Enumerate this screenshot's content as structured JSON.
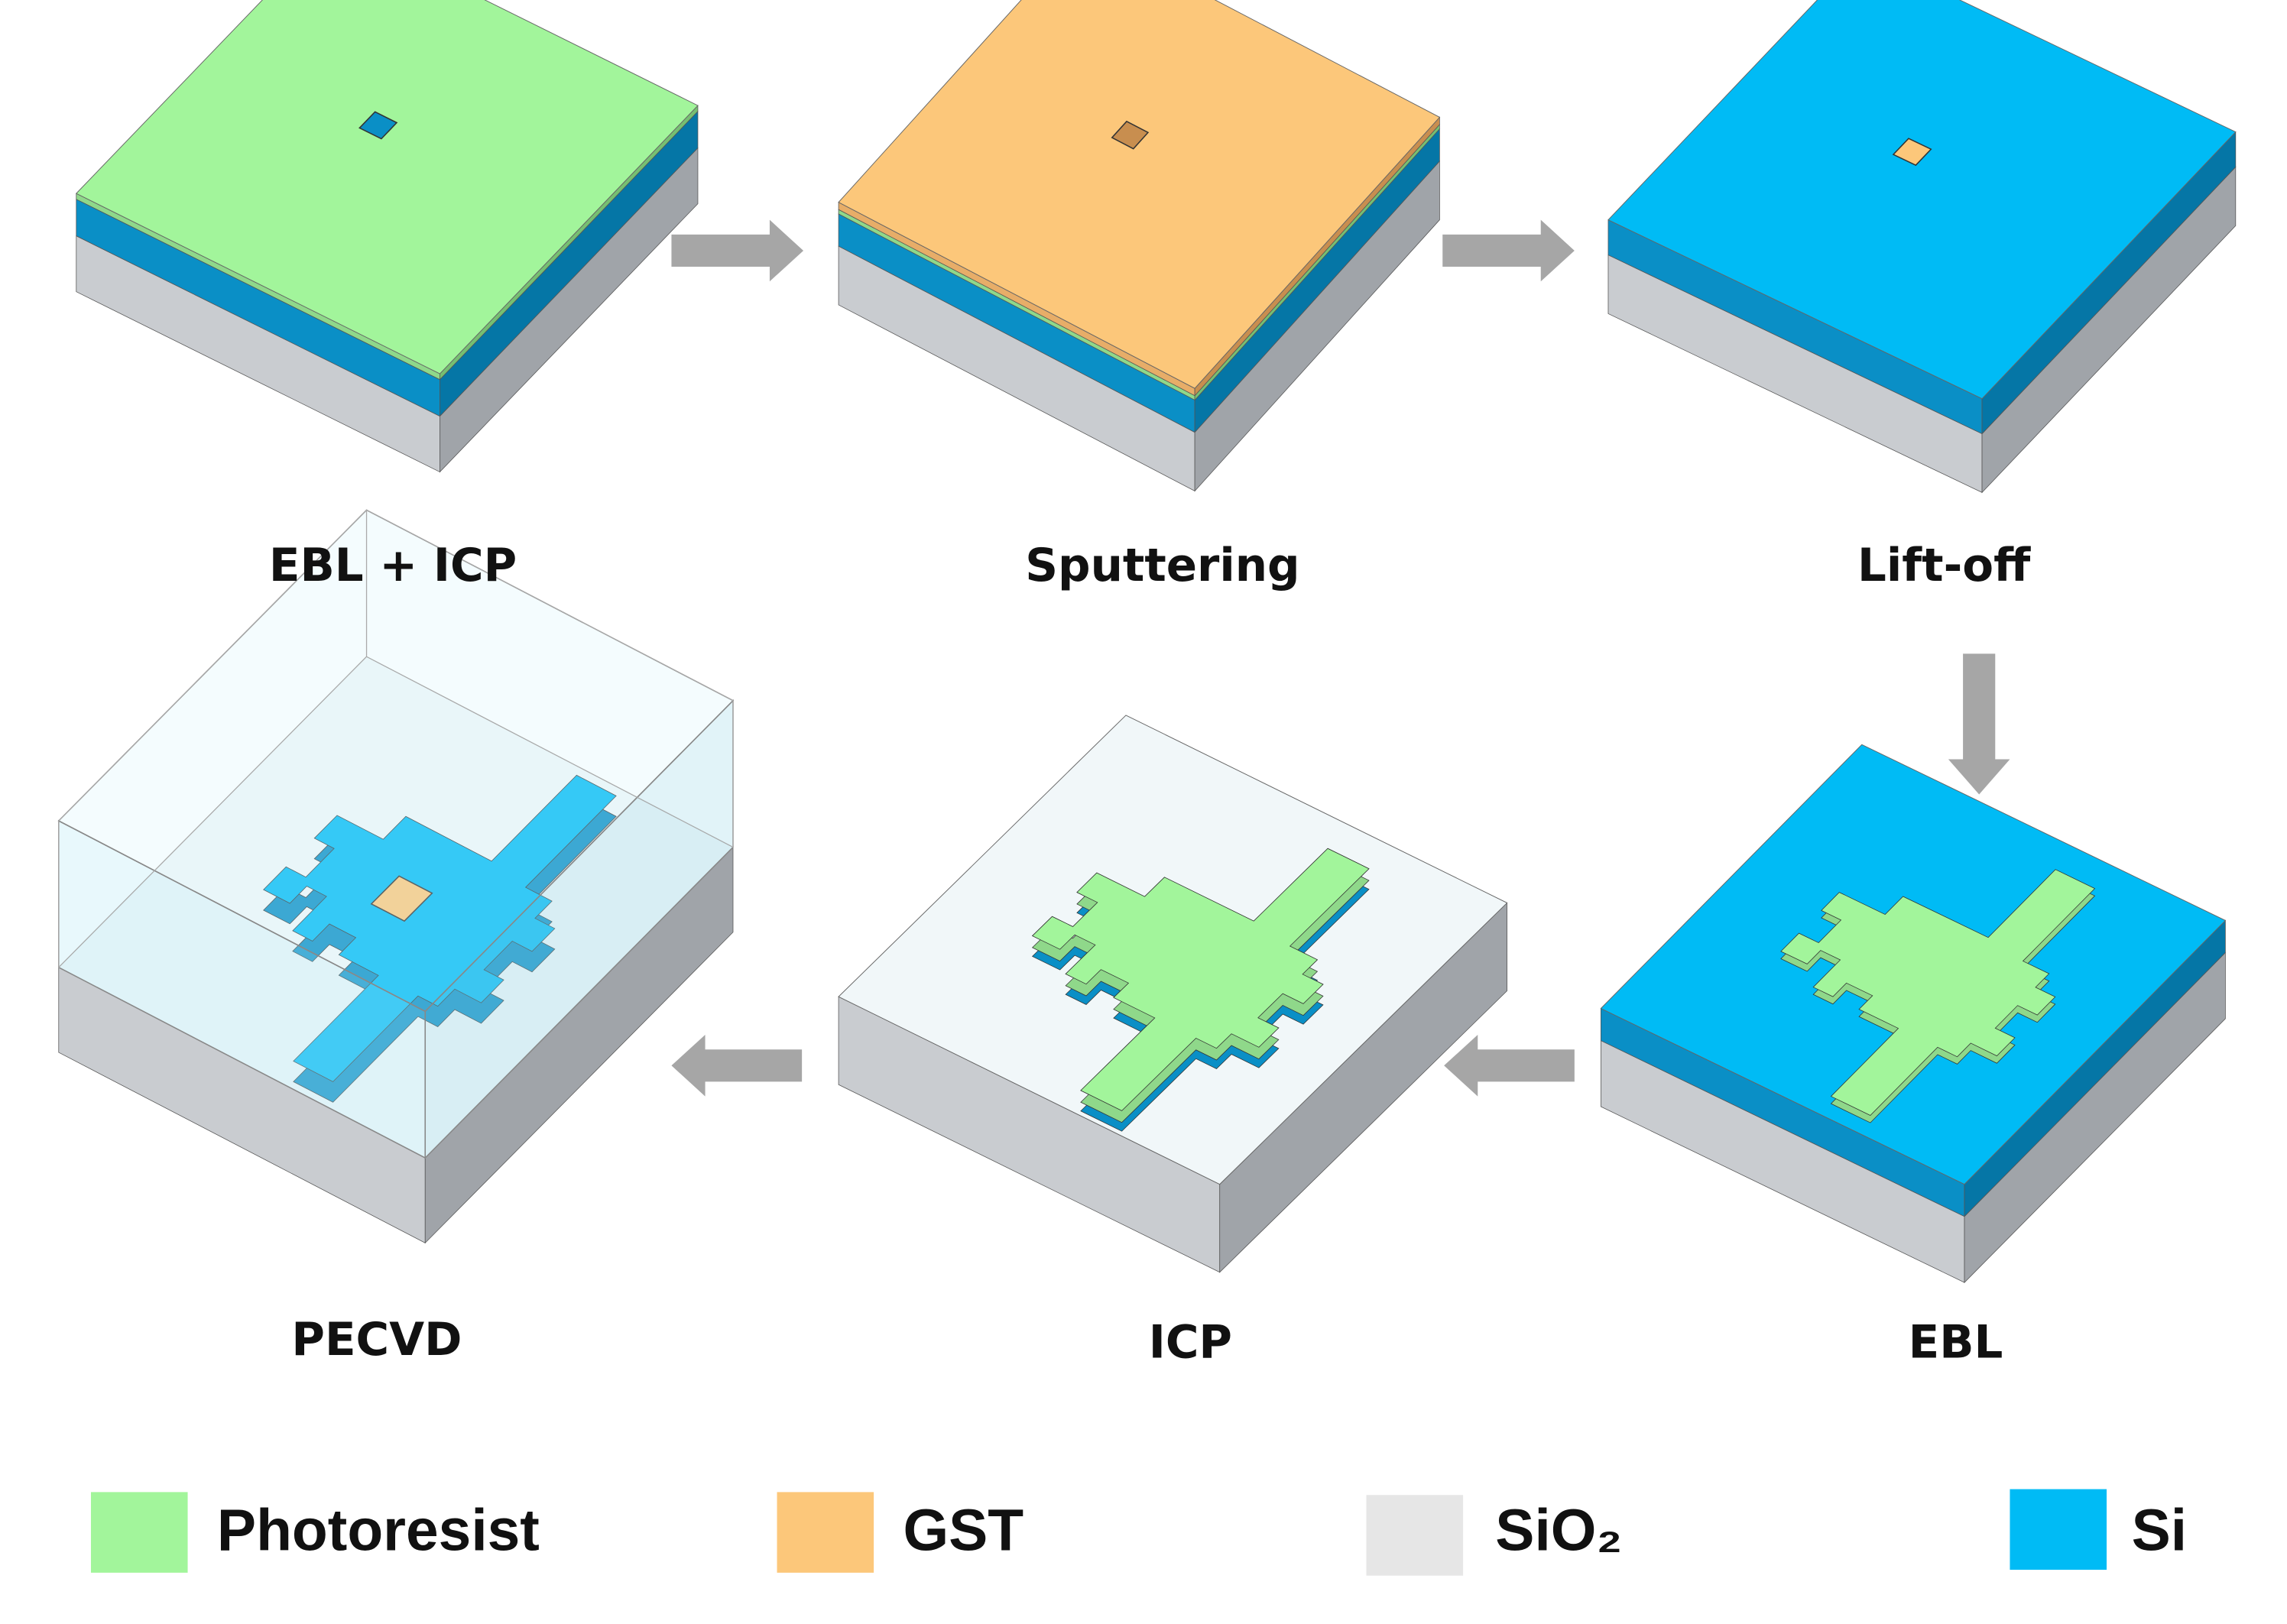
{
  "steps": [
    {
      "label": "EBL + ICP"
    },
    {
      "label": "Sputtering"
    },
    {
      "label": "Lift-off"
    },
    {
      "label": "EBL"
    },
    {
      "label": "ICP"
    },
    {
      "label": "PECVD"
    }
  ],
  "legend": [
    {
      "label": "Photoresist"
    },
    {
      "label": "GST"
    },
    {
      "label": "SiO₂"
    },
    {
      "label": "Si"
    }
  ]
}
